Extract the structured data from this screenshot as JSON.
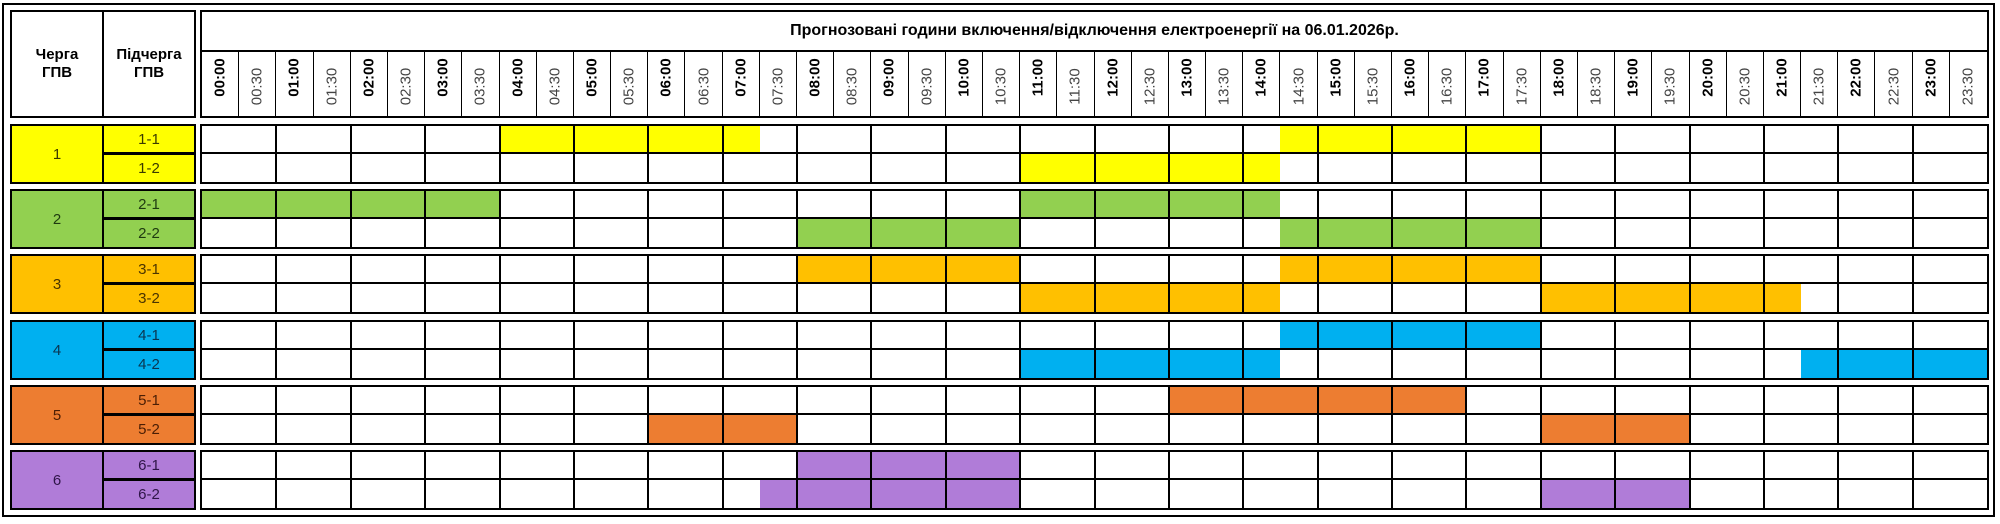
{
  "header": {
    "queue_label": "Черга ГПВ",
    "subqueue_label": "Підчерга ГПВ",
    "title": "Прогнозовані години включення/відключення електроенергії на 06.01.2026р."
  },
  "times": [
    "00:00",
    "00:30",
    "01:00",
    "01:30",
    "02:00",
    "02:30",
    "03:00",
    "03:30",
    "04:00",
    "04:30",
    "05:00",
    "05:30",
    "06:00",
    "06:30",
    "07:00",
    "07:30",
    "08:00",
    "08:30",
    "09:00",
    "09:30",
    "10:00",
    "10:30",
    "11:00",
    "11:30",
    "12:00",
    "12:30",
    "13:00",
    "13:30",
    "14:00",
    "14:30",
    "15:00",
    "15:30",
    "16:00",
    "16:30",
    "17:00",
    "17:30",
    "18:00",
    "18:30",
    "19:00",
    "19:30",
    "20:00",
    "20:30",
    "21:00",
    "21:30",
    "22:00",
    "22:30",
    "23:00",
    "23:30"
  ],
  "groups": [
    {
      "label": "1",
      "color": "#FFFF00",
      "text_color": "#3a3a00",
      "sub": [
        {
          "label": "1-1",
          "outages": [
            [
              "04:00",
              "07:30"
            ],
            [
              "14:30",
              "18:00"
            ]
          ]
        },
        {
          "label": "1-2",
          "outages": [
            [
              "11:00",
              "14:30"
            ]
          ]
        }
      ]
    },
    {
      "label": "2",
      "color": "#92D050",
      "text_color": "#1f3a10",
      "sub": [
        {
          "label": "2-1",
          "outages": [
            [
              "00:00",
              "04:00"
            ],
            [
              "11:00",
              "14:30"
            ]
          ]
        },
        {
          "label": "2-2",
          "outages": [
            [
              "08:00",
              "11:00"
            ],
            [
              "14:30",
              "18:00"
            ]
          ]
        }
      ]
    },
    {
      "label": "3",
      "color": "#FFC000",
      "text_color": "#4a3400",
      "sub": [
        {
          "label": "3-1",
          "outages": [
            [
              "08:00",
              "11:00"
            ],
            [
              "14:30",
              "18:00"
            ]
          ]
        },
        {
          "label": "3-2",
          "outages": [
            [
              "11:00",
              "14:30"
            ],
            [
              "18:00",
              "21:30"
            ]
          ]
        }
      ]
    },
    {
      "label": "4",
      "color": "#00B0F0",
      "text_color": "#0a3550",
      "sub": [
        {
          "label": "4-1",
          "outages": [
            [
              "14:30",
              "18:00"
            ]
          ]
        },
        {
          "label": "4-2",
          "outages": [
            [
              "11:00",
              "14:30"
            ],
            [
              "21:30",
              "24:00"
            ]
          ]
        }
      ]
    },
    {
      "label": "5",
      "color": "#ED7D31",
      "text_color": "#4a1e05",
      "sub": [
        {
          "label": "5-1",
          "outages": [
            [
              "13:00",
              "17:00"
            ]
          ]
        },
        {
          "label": "5-2",
          "outages": [
            [
              "06:00",
              "08:00"
            ],
            [
              "18:00",
              "20:00"
            ]
          ]
        }
      ]
    },
    {
      "label": "6",
      "color": "#B07CD8",
      "text_color": "#2e1547",
      "sub": [
        {
          "label": "6-1",
          "outages": [
            [
              "08:00",
              "11:00"
            ]
          ]
        },
        {
          "label": "6-2",
          "outages": [
            [
              "07:30",
              "11:00"
            ],
            [
              "18:00",
              "20:00"
            ]
          ]
        }
      ]
    }
  ]
}
